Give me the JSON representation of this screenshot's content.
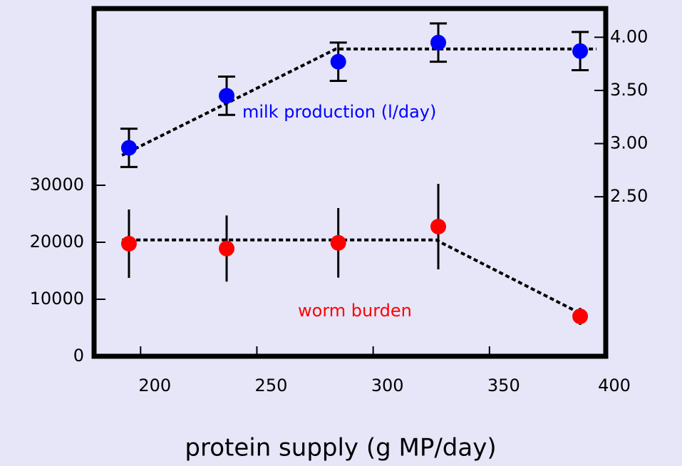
{
  "chart_data": {
    "type": "scatter",
    "xlabel": "protein supply (g MP/day)",
    "xlim": [
      180,
      400
    ],
    "xticks": [
      200,
      250,
      300,
      350,
      400
    ],
    "ylim": [
      0,
      61000
    ],
    "yticks": [
      0,
      10000,
      20000,
      30000
    ],
    "y2lim": [
      1.0,
      4.27
    ],
    "y2ticks": [
      {
        "value": 2.5,
        "label": "2.50"
      },
      {
        "value": 3.0,
        "label": "3.00"
      },
      {
        "value": 3.5,
        "label": "3.50"
      },
      {
        "value": 4.0,
        "label": "4.00"
      }
    ],
    "series": [
      {
        "name": "milk production (l/day)",
        "color": "#0000ff",
        "axis": "y2",
        "error_caps": true,
        "x": [
          195,
          237,
          285,
          328,
          389
        ],
        "values": [
          2.96,
          3.45,
          3.77,
          3.95,
          3.87
        ],
        "errors": [
          0.18,
          0.18,
          0.18,
          0.18,
          0.18
        ]
      },
      {
        "name": "worm burden",
        "color": "#ff0000",
        "axis": "y",
        "error_caps": false,
        "x": [
          195,
          237,
          285,
          328,
          389
        ],
        "values": [
          19750,
          18900,
          19900,
          22750,
          7000
        ],
        "errors": [
          6000,
          5800,
          6100,
          7500,
          1500
        ]
      }
    ],
    "fit_lines": [
      {
        "axis": "y2",
        "x": [
          192,
          284,
          396
        ],
        "values": [
          2.89,
          3.89,
          3.89
        ]
      },
      {
        "axis": "y",
        "x": [
          192,
          327,
          388
        ],
        "values": [
          20400,
          20400,
          7750
        ]
      }
    ]
  }
}
